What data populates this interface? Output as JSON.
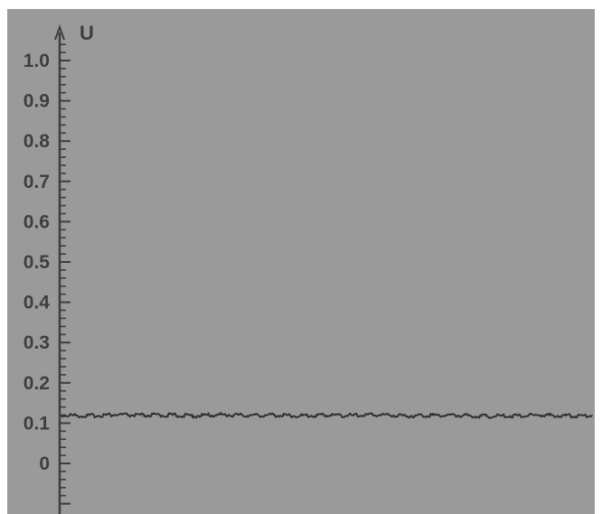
{
  "chart_data": {
    "type": "line",
    "title": "",
    "xlabel": "",
    "ylabel": "U",
    "ylim": [
      -0.1,
      1.05
    ],
    "xlim": [
      0,
      1
    ],
    "grid": false,
    "legend": "none",
    "y_ticks": [
      {
        "value": 1.0,
        "label": "1.0"
      },
      {
        "value": 0.9,
        "label": "0.9"
      },
      {
        "value": 0.8,
        "label": "0.8"
      },
      {
        "value": 0.7,
        "label": "0.7"
      },
      {
        "value": 0.6,
        "label": "0.6"
      },
      {
        "value": 0.5,
        "label": "0.5"
      },
      {
        "value": 0.4,
        "label": "0.4"
      },
      {
        "value": 0.3,
        "label": "0.3"
      },
      {
        "value": 0.2,
        "label": "0.2"
      },
      {
        "value": 0.1,
        "label": "0.1"
      },
      {
        "value": 0.0,
        "label": "0"
      }
    ],
    "series": [
      {
        "x": [
          0,
          0.05,
          0.1,
          0.15,
          0.2,
          0.25,
          0.3,
          0.35,
          0.4,
          0.45,
          0.5,
          0.55,
          0.6,
          0.65,
          0.7,
          0.75,
          0.8,
          0.85,
          0.9,
          0.95,
          1.0
        ],
        "values": [
          0.12,
          0.118,
          0.121,
          0.119,
          0.12,
          0.118,
          0.121,
          0.119,
          0.12,
          0.118,
          0.12,
          0.119,
          0.121,
          0.118,
          0.12,
          0.119,
          0.117,
          0.118,
          0.12,
          0.118,
          0.119
        ]
      }
    ],
    "colors": {
      "background": "#9a9a9a",
      "axis": "#3e3e3e",
      "line": "#2f3230",
      "text": "#3e3e3e"
    }
  }
}
